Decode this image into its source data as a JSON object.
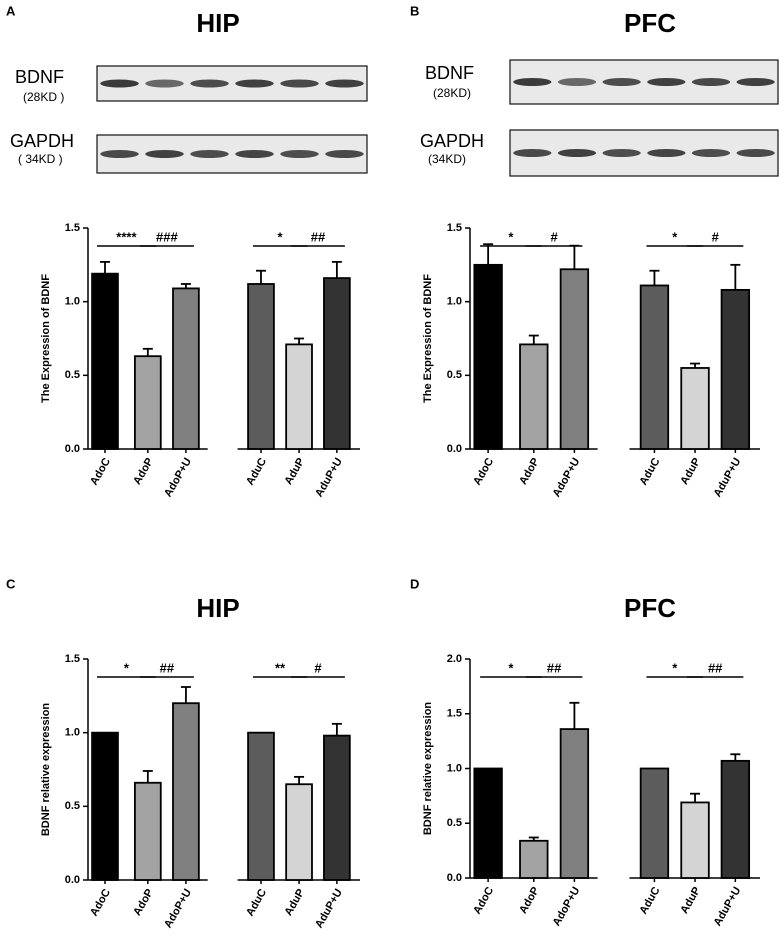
{
  "chart_data": [
    {
      "type": "bar",
      "panel": "A",
      "title": "HIP",
      "blots": [
        {
          "name": "BDNF",
          "size": "(28KD )"
        },
        {
          "name": "GAPDH",
          "size": "( 34KD )"
        }
      ],
      "ylabel": "The Expression of BDNF",
      "categories": [
        "AdoC",
        "AdoP",
        "AdoP+U",
        "AduC",
        "AduP",
        "AduP+U"
      ],
      "values": [
        1.19,
        0.63,
        1.09,
        1.12,
        0.71,
        1.16
      ],
      "errors": [
        0.08,
        0.05,
        0.03,
        0.09,
        0.04,
        0.11
      ],
      "colors": [
        "#000000",
        "#a3a3a3",
        "#808080",
        "#5c5c5c",
        "#d4d4d4",
        "#333333"
      ],
      "ylim": [
        0,
        1.5
      ],
      "yticks": [
        {
          "value": 0,
          "label": "0.0"
        },
        {
          "value": 0.5,
          "label": "0.5"
        },
        {
          "value": 1,
          "label": "1.0"
        },
        {
          "value": 1.5,
          "label": "1.5"
        }
      ],
      "annotations": [
        "****",
        "###",
        "*",
        "##"
      ]
    },
    {
      "type": "bar",
      "panel": "B",
      "title": "PFC",
      "blots": [
        {
          "name": "BDNF",
          "size": "(28KD)"
        },
        {
          "name": "GAPDH",
          "size": "(34KD)"
        }
      ],
      "ylabel": "The Expression of BDNF",
      "categories": [
        "AdoC",
        "AdoP",
        "AdoP+U",
        "AduC",
        "AduP",
        "AduP+U"
      ],
      "values": [
        1.25,
        0.71,
        1.22,
        1.11,
        0.55,
        1.08
      ],
      "errors": [
        0.14,
        0.06,
        0.16,
        0.1,
        0.03,
        0.17
      ],
      "colors": [
        "#000000",
        "#a3a3a3",
        "#808080",
        "#5c5c5c",
        "#d4d4d4",
        "#333333"
      ],
      "ylim": [
        0,
        1.5
      ],
      "yticks": [
        {
          "value": 0,
          "label": "0.0"
        },
        {
          "value": 0.5,
          "label": "0.5"
        },
        {
          "value": 1,
          "label": "1.0"
        },
        {
          "value": 1.5,
          "label": "1.5"
        }
      ],
      "annotations": [
        "*",
        "#",
        "*",
        "#"
      ]
    },
    {
      "type": "bar",
      "panel": "C",
      "title": "HIP",
      "ylabel": "BDNF relative expression",
      "categories": [
        "AdoC",
        "AdoP",
        "AdoP+U",
        "AduC",
        "AduP",
        "AduP+U"
      ],
      "values": [
        1.0,
        0.66,
        1.2,
        1.0,
        0.65,
        0.98
      ],
      "errors": [
        0,
        0.08,
        0.11,
        0,
        0.05,
        0.08
      ],
      "colors": [
        "#000000",
        "#a3a3a3",
        "#808080",
        "#5c5c5c",
        "#d4d4d4",
        "#333333"
      ],
      "ylim": [
        0,
        1.5
      ],
      "yticks": [
        {
          "value": 0,
          "label": "0.0"
        },
        {
          "value": 0.5,
          "label": "0.5"
        },
        {
          "value": 1,
          "label": "1.0"
        },
        {
          "value": 1.5,
          "label": "1.5"
        }
      ],
      "annotations": [
        "*",
        "##",
        "**",
        "#"
      ]
    },
    {
      "type": "bar",
      "panel": "D",
      "title": "PFC",
      "ylabel": "BDNF relative expression",
      "categories": [
        "AdoC",
        "AdoP",
        "AdoP+U",
        "AduC",
        "AduP",
        "AduP+U"
      ],
      "values": [
        1.0,
        0.34,
        1.36,
        1.0,
        0.69,
        1.07
      ],
      "errors": [
        0,
        0.03,
        0.24,
        0,
        0.08,
        0.06
      ],
      "colors": [
        "#000000",
        "#a3a3a3",
        "#808080",
        "#5c5c5c",
        "#d4d4d4",
        "#333333"
      ],
      "ylim": [
        0,
        2
      ],
      "yticks": [
        {
          "value": 0,
          "label": "0.0"
        },
        {
          "value": 0.5,
          "label": "0.5"
        },
        {
          "value": 1,
          "label": "1.0"
        },
        {
          "value": 1.5,
          "label": "1.5"
        },
        {
          "value": 2,
          "label": "2.0"
        }
      ],
      "annotations": [
        "*",
        "##",
        "*",
        "##"
      ]
    }
  ]
}
